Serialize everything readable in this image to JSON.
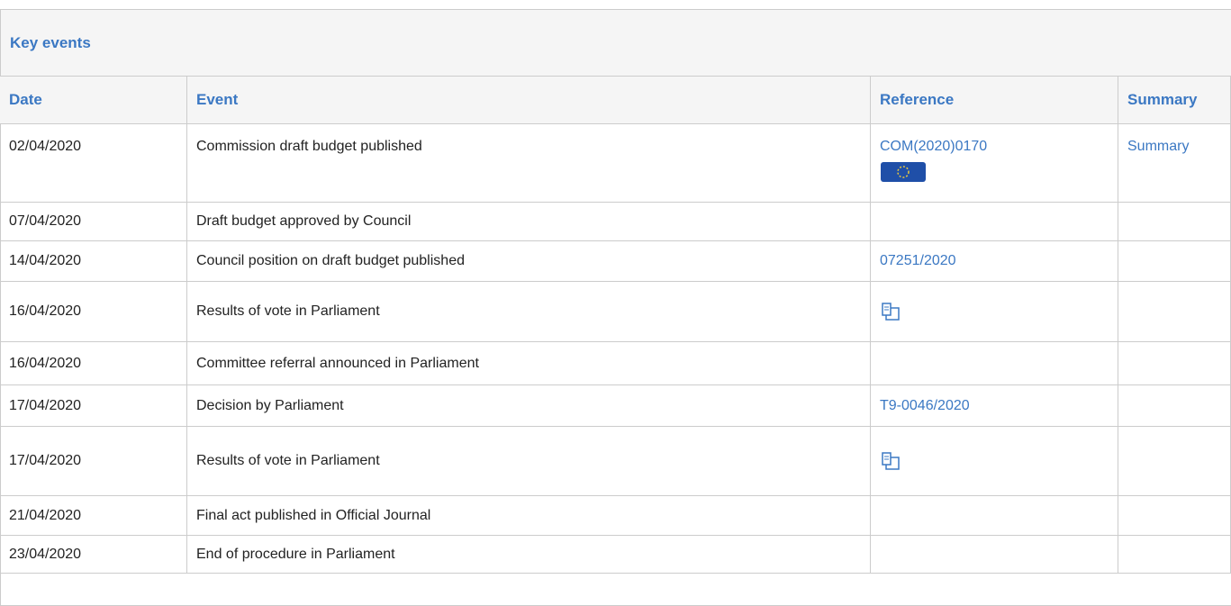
{
  "header": {
    "title": "Key events"
  },
  "table": {
    "columns": [
      "Date",
      "Event",
      "Reference",
      "Summary"
    ],
    "rows": [
      {
        "date": "02/04/2020",
        "event": "Commission draft budget published",
        "reference": "COM(2020)0170",
        "summary": "Summary"
      },
      {
        "date": "07/04/2020",
        "event": "Draft budget approved by Council"
      },
      {
        "date": "14/04/2020",
        "event": "Council position on draft budget published",
        "reference": "07251/2020"
      },
      {
        "date": "16/04/2020",
        "event": "Results of vote in Parliament"
      },
      {
        "date": "16/04/2020",
        "event": "Committee referral announced in Parliament"
      },
      {
        "date": "17/04/2020",
        "event": "Decision by Parliament",
        "reference": "T9-0046/2020"
      },
      {
        "date": "17/04/2020",
        "event": "Results of vote in Parliament"
      },
      {
        "date": "21/04/2020",
        "event": "Final act published in Official Journal"
      },
      {
        "date": "23/04/2020",
        "event": "End of procedure in Parliament"
      }
    ]
  }
}
